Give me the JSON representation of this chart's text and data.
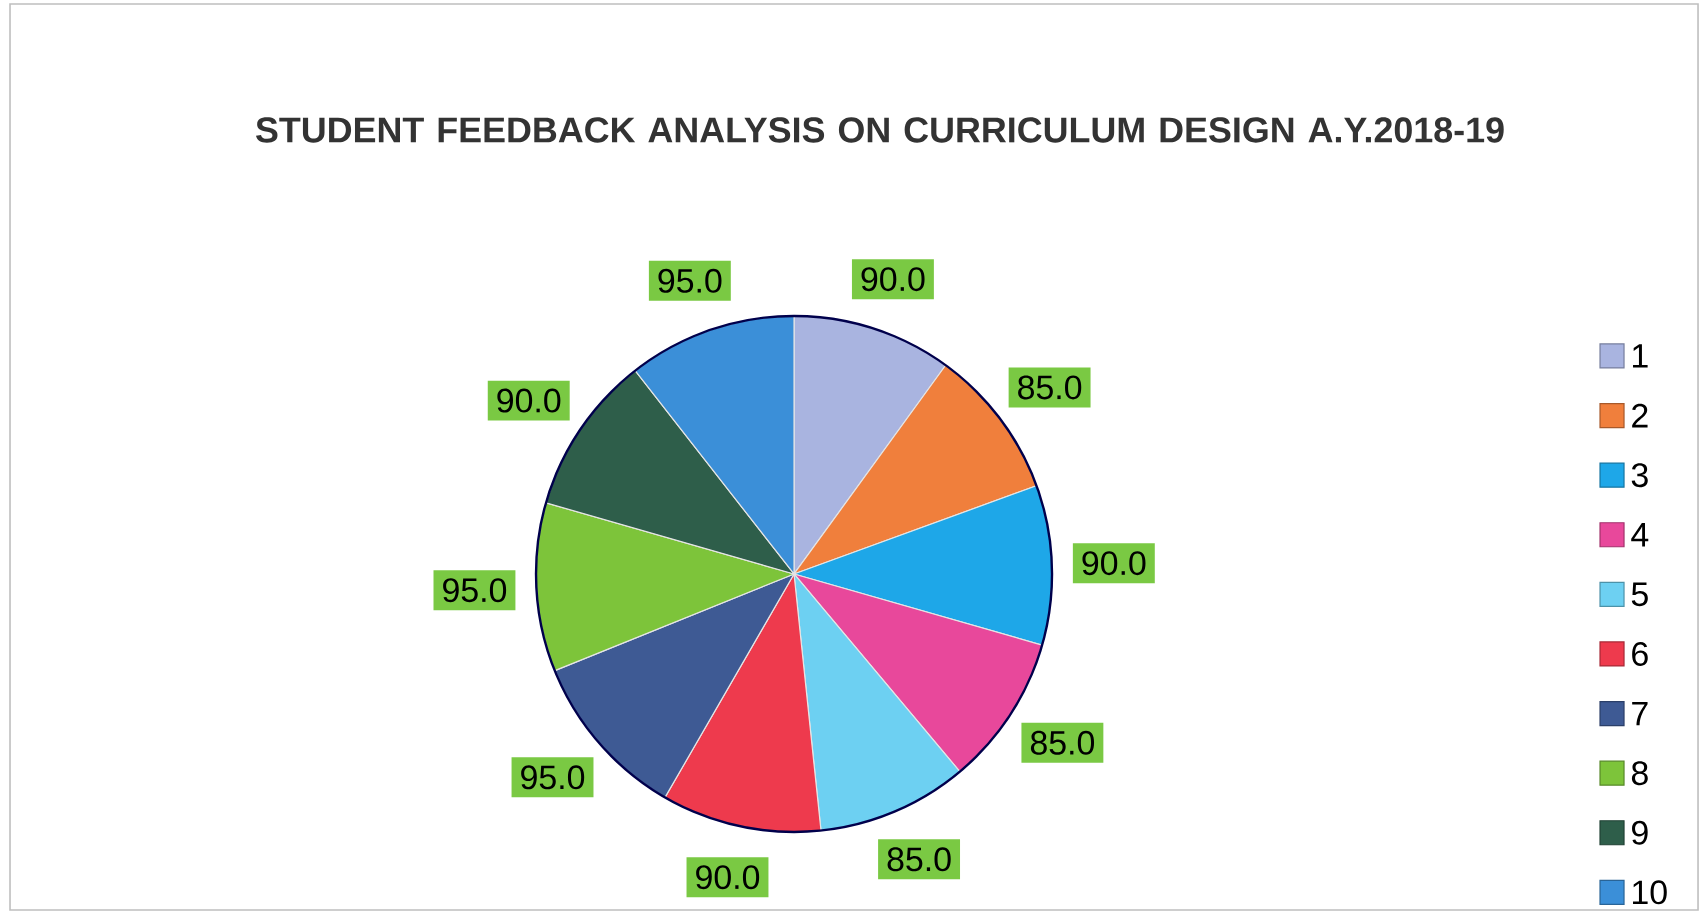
{
  "chart_data": {
    "type": "pie",
    "title": "STUDENT FEEDBACK ANALYSIS ON CURRICULUM DESIGN A.Y.2018-19",
    "categories": [
      "1",
      "2",
      "3",
      "4",
      "5",
      "6",
      "7",
      "8",
      "9",
      "10"
    ],
    "values": [
      90,
      85,
      90,
      85,
      85,
      90,
      95,
      95,
      90,
      95
    ],
    "value_labels": [
      "90.0",
      "85.0",
      "90.0",
      "85.0",
      "85.0",
      "90.0",
      "95.0",
      "95.0",
      "90.0",
      "95.0"
    ],
    "colors": [
      "#a9b4e0",
      "#f07f3c",
      "#1ea7e8",
      "#e8489b",
      "#6dd0f2",
      "#ee3a4d",
      "#3e5a94",
      "#7dc43a",
      "#2e5e4a",
      "#3b8fd8"
    ],
    "legend": "right"
  }
}
